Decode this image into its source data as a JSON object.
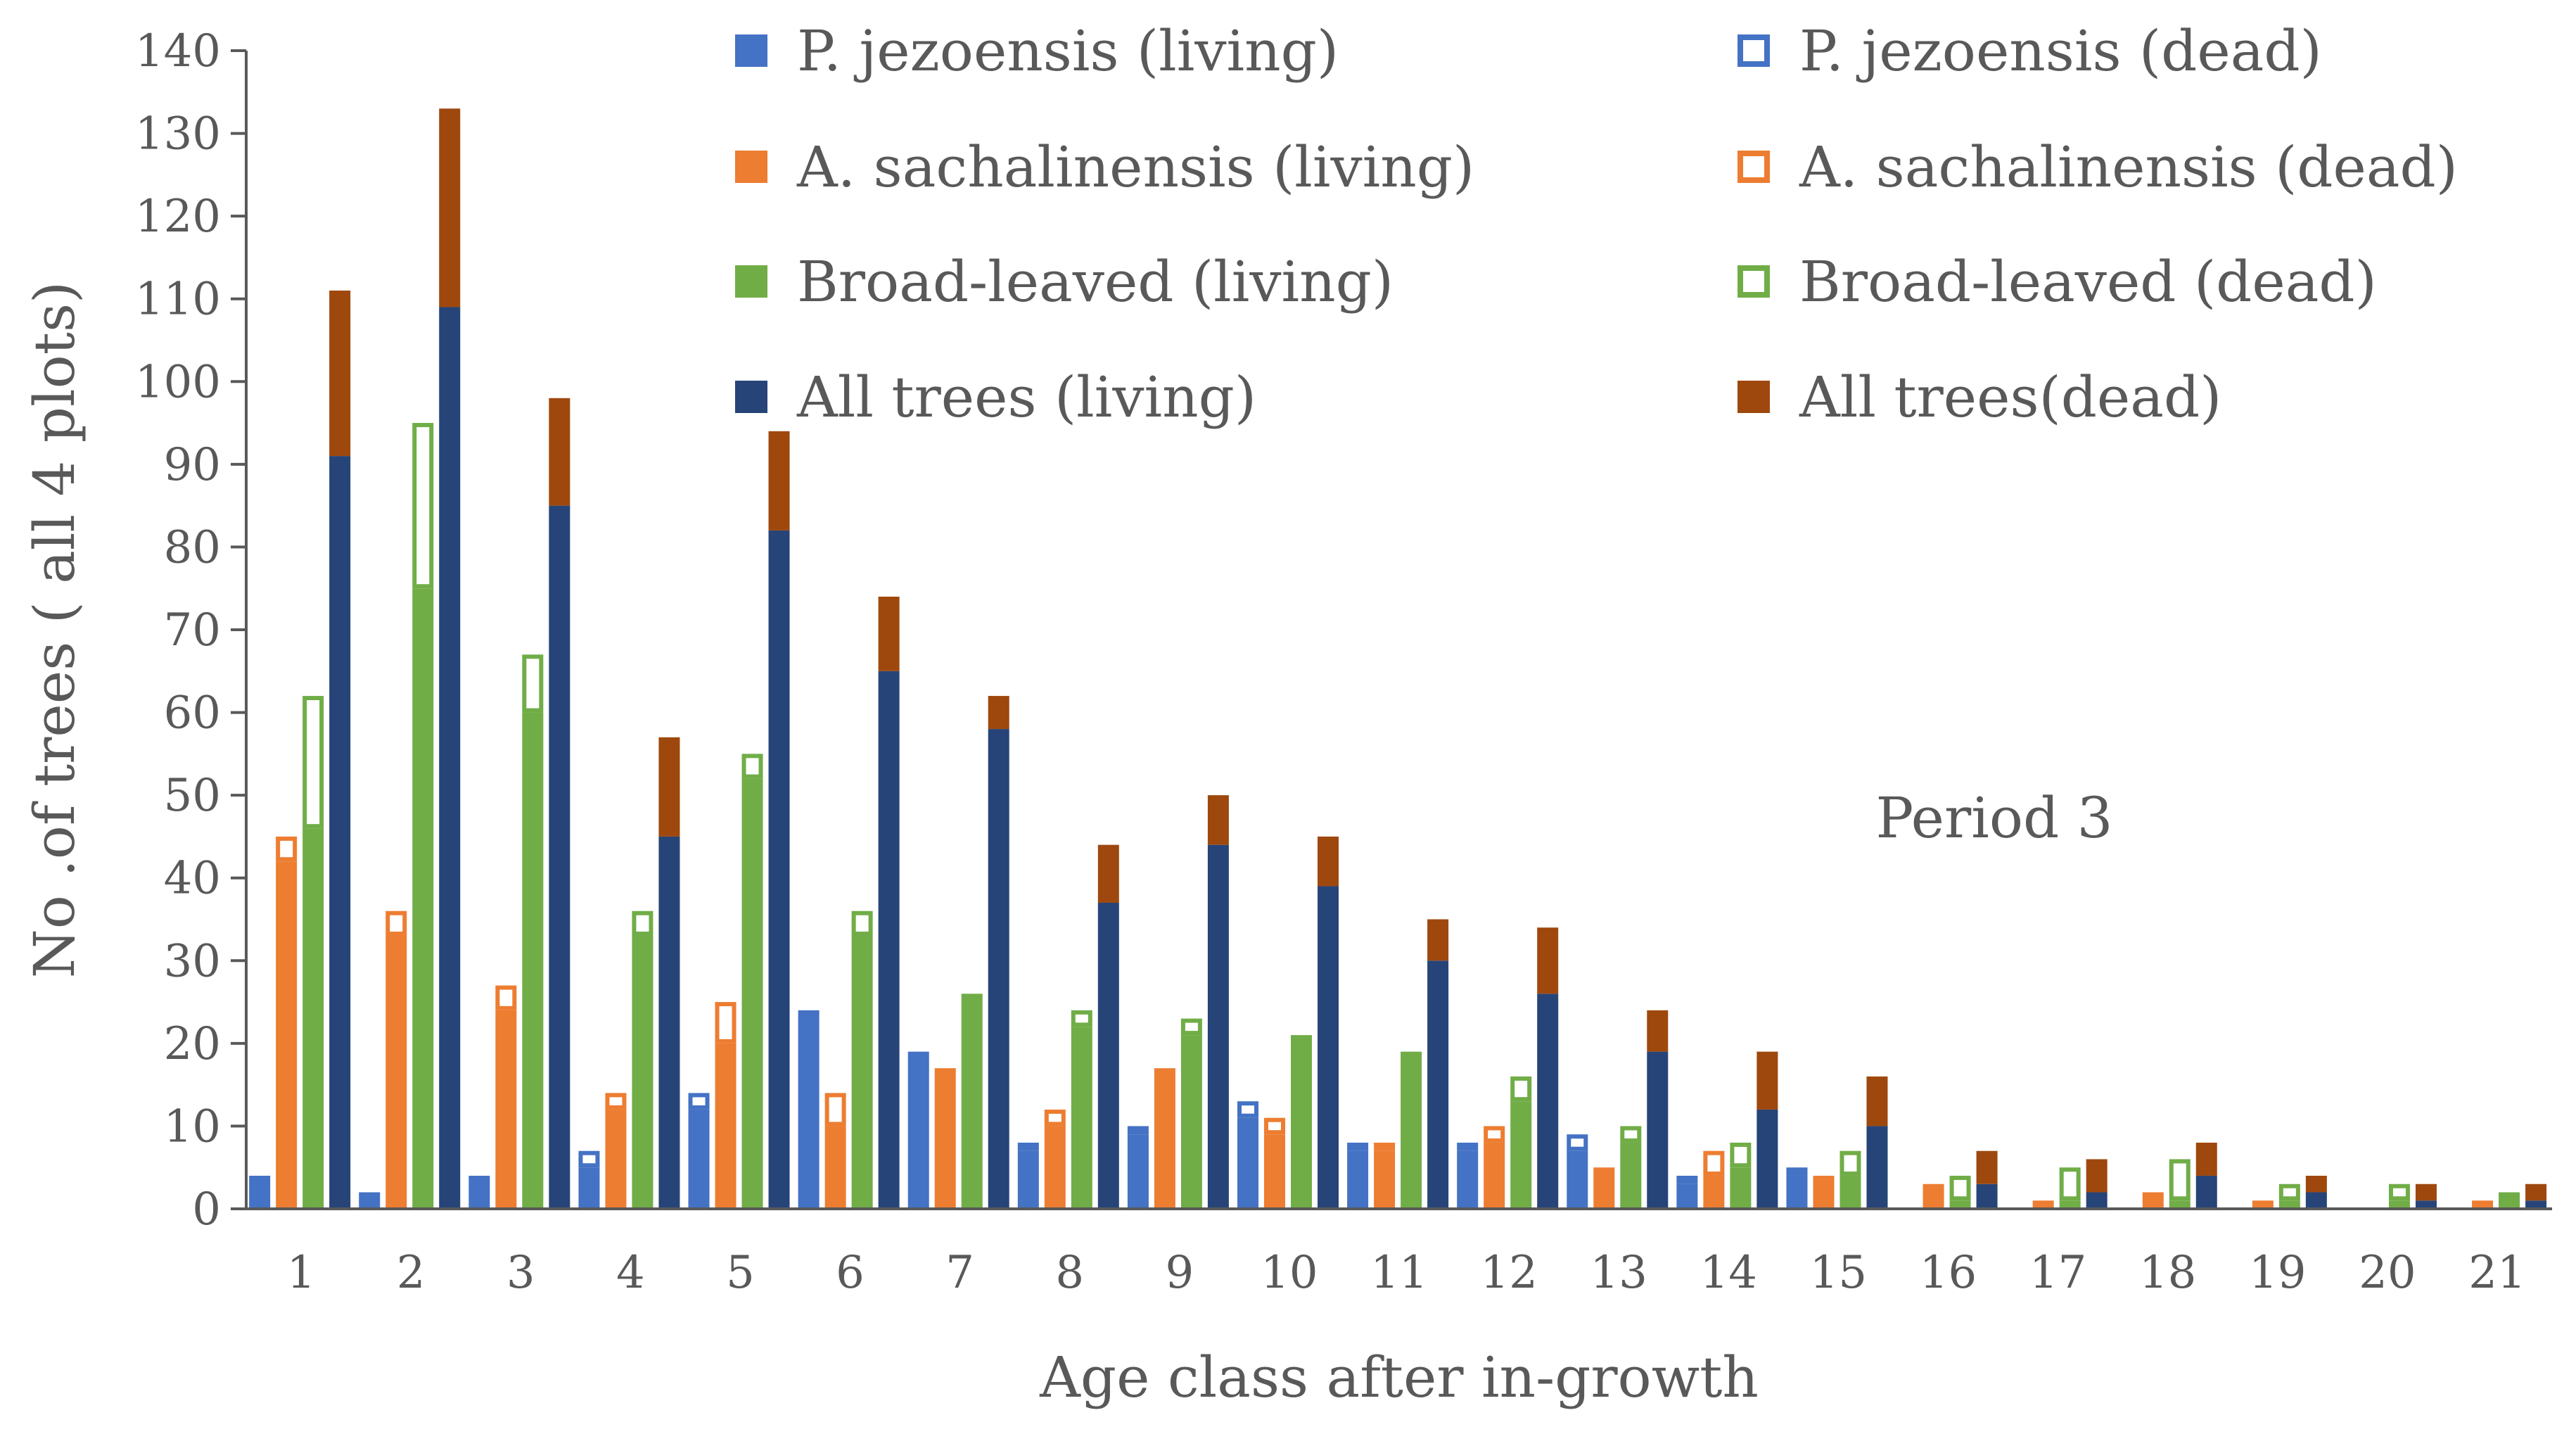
{
  "chart_data": {
    "type": "bar",
    "title": "",
    "annotation": "Period 3",
    "xlabel": "Age class after in-growth",
    "ylabel": "No .of trees ( all 4 plots)",
    "ylim": [
      0,
      140
    ],
    "yticks": [
      0,
      10,
      20,
      30,
      40,
      50,
      60,
      70,
      80,
      90,
      100,
      110,
      120,
      130,
      140
    ],
    "categories": [
      "1",
      "2",
      "3",
      "4",
      "5",
      "6",
      "7",
      "8",
      "9",
      "10",
      "11",
      "12",
      "13",
      "14",
      "15",
      "16",
      "17",
      "18",
      "19",
      "20",
      "21"
    ],
    "legend_position": "top-right",
    "groups": [
      {
        "key": "pj",
        "living": {
          "name": "P. jezoensis (living)",
          "color": "#4472C4",
          "values": [
            4,
            2,
            4,
            5,
            12,
            24,
            19,
            7,
            9,
            11,
            7,
            7,
            7,
            3,
            4,
            0,
            0,
            0,
            0,
            0,
            0
          ]
        },
        "dead": {
          "name": "P. jezoensis  (dead)",
          "color": "#4472C4",
          "values": [
            0,
            0,
            0,
            2,
            2,
            0,
            0,
            1,
            1,
            2,
            1,
            1,
            2,
            1,
            1,
            0,
            0,
            0,
            0,
            0,
            0
          ]
        }
      },
      {
        "key": "as",
        "living": {
          "name": "A. sachalinensis  (living)",
          "color": "#ED7D31",
          "values": [
            42,
            33,
            24,
            12,
            20,
            10,
            17,
            10,
            17,
            9,
            7,
            8,
            5,
            4,
            4,
            3,
            1,
            2,
            1,
            0,
            1
          ]
        },
        "dead": {
          "name": "A. sachalinensis (dead)",
          "color": "#ED7D31",
          "values": [
            3,
            3,
            3,
            2,
            5,
            4,
            0,
            2,
            0,
            2,
            1,
            2,
            0,
            3,
            0,
            0,
            0,
            0,
            0,
            0,
            0
          ]
        }
      },
      {
        "key": "bl",
        "living": {
          "name": "Broad-leaved (living)",
          "color": "#70AD47",
          "values": [
            46,
            75,
            60,
            33,
            52,
            33,
            26,
            22,
            21,
            21,
            19,
            13,
            8,
            5,
            4,
            1,
            1,
            1,
            1,
            1,
            2
          ]
        },
        "dead": {
          "name": "Broad-leaved (dead)",
          "color": "#70AD47",
          "values": [
            16,
            20,
            7,
            3,
            3,
            3,
            0,
            2,
            2,
            0,
            0,
            3,
            2,
            3,
            3,
            3,
            4,
            5,
            2,
            2,
            0
          ]
        }
      },
      {
        "key": "all",
        "living": {
          "name": "All trees (living)",
          "color": "#264478",
          "values": [
            91,
            109,
            85,
            45,
            82,
            65,
            58,
            37,
            44,
            39,
            30,
            26,
            19,
            12,
            10,
            3,
            2,
            4,
            2,
            1,
            1
          ]
        },
        "dead": {
          "name": "All trees(dead)",
          "color": "#9E480E",
          "values": [
            20,
            24,
            13,
            12,
            12,
            9,
            4,
            7,
            6,
            6,
            5,
            8,
            5,
            7,
            6,
            4,
            4,
            4,
            2,
            2,
            2
          ]
        }
      }
    ]
  }
}
